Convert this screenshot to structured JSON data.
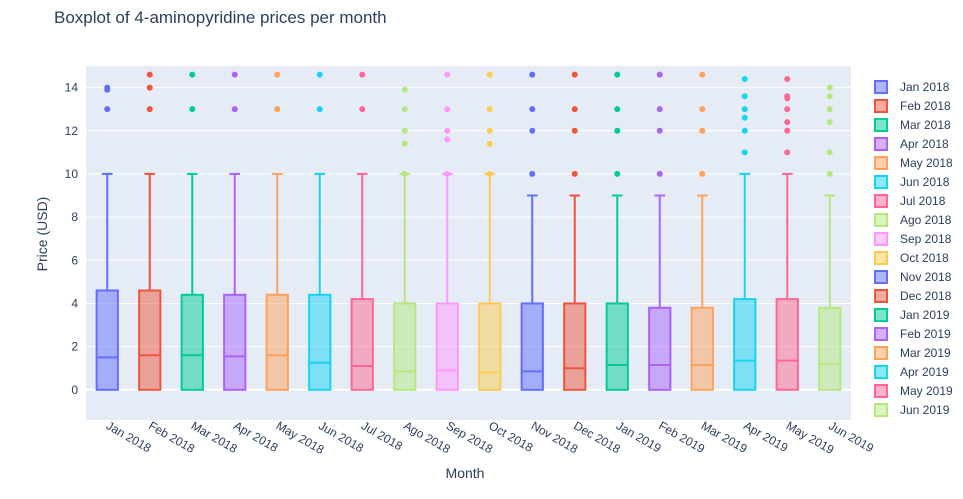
{
  "chart_data": {
    "type": "box",
    "title": "Boxplot of 4-aminopyridine prices per month",
    "xlabel": "Month",
    "ylabel": "Price (USD)",
    "ylim": [
      -1.4,
      15
    ],
    "yticks": [
      0,
      2,
      4,
      6,
      8,
      10,
      12,
      14
    ],
    "grid": true,
    "legend_position": "right",
    "plot_background": "#e5ecf6",
    "series": [
      {
        "name": "Jan 2018",
        "color": "#636efa",
        "q1": 0,
        "median": 1.5,
        "q3": 4.6,
        "lower": 0,
        "upper": 10,
        "outliers": [
          13,
          13.9,
          14
        ]
      },
      {
        "name": "Feb 2018",
        "color": "#ef553b",
        "q1": 0,
        "median": 1.6,
        "q3": 4.6,
        "lower": 0,
        "upper": 10,
        "outliers": [
          13,
          14,
          14.6
        ]
      },
      {
        "name": "Mar 2018",
        "color": "#00cc96",
        "q1": 0,
        "median": 1.6,
        "q3": 4.4,
        "lower": 0,
        "upper": 10,
        "outliers": [
          13,
          14.6
        ]
      },
      {
        "name": "Apr 2018",
        "color": "#ab63fa",
        "q1": 0,
        "median": 1.55,
        "q3": 4.4,
        "lower": 0,
        "upper": 10,
        "outliers": [
          13,
          14.6
        ]
      },
      {
        "name": "May 2018",
        "color": "#ffa15a",
        "q1": 0,
        "median": 1.6,
        "q3": 4.4,
        "lower": 0,
        "upper": 10,
        "outliers": [
          13,
          14.6
        ]
      },
      {
        "name": "Jun 2018",
        "color": "#19d3f3",
        "q1": 0,
        "median": 1.25,
        "q3": 4.4,
        "lower": 0,
        "upper": 10,
        "outliers": [
          13,
          14.6
        ]
      },
      {
        "name": "Jul 2018",
        "color": "#ff6692",
        "q1": 0,
        "median": 1.1,
        "q3": 4.2,
        "lower": 0,
        "upper": 10,
        "outliers": [
          13,
          14.6
        ]
      },
      {
        "name": "Ago 2018",
        "color": "#b6e880",
        "q1": 0,
        "median": 0.85,
        "q3": 4.0,
        "lower": 0,
        "upper": 10,
        "outliers": [
          10,
          11.4,
          12,
          13,
          13.9
        ]
      },
      {
        "name": "Sep 2018",
        "color": "#ff97ff",
        "q1": 0,
        "median": 0.9,
        "q3": 4.0,
        "lower": 0,
        "upper": 10,
        "outliers": [
          10,
          11.6,
          12,
          13,
          14.6
        ]
      },
      {
        "name": "Oct 2018",
        "color": "#fecb52",
        "q1": 0,
        "median": 0.8,
        "q3": 4.0,
        "lower": 0,
        "upper": 10,
        "outliers": [
          10,
          11.4,
          12,
          13,
          14.6
        ]
      },
      {
        "name": "Nov 2018",
        "color": "#636efa",
        "q1": 0,
        "median": 0.85,
        "q3": 4.0,
        "lower": 0,
        "upper": 9,
        "outliers": [
          10,
          12,
          13,
          14.6
        ]
      },
      {
        "name": "Dec 2018",
        "color": "#ef553b",
        "q1": 0,
        "median": 1.0,
        "q3": 4.0,
        "lower": 0,
        "upper": 9,
        "outliers": [
          10,
          12,
          13,
          14.6
        ]
      },
      {
        "name": "Jan 2019",
        "color": "#00cc96",
        "q1": 0,
        "median": 1.15,
        "q3": 4.0,
        "lower": 0,
        "upper": 9,
        "outliers": [
          10,
          12,
          13,
          14.6
        ]
      },
      {
        "name": "Feb 2019",
        "color": "#ab63fa",
        "q1": 0,
        "median": 1.15,
        "q3": 3.8,
        "lower": 0,
        "upper": 9,
        "outliers": [
          10,
          12,
          13,
          14.6
        ]
      },
      {
        "name": "Mar 2019",
        "color": "#ffa15a",
        "q1": 0,
        "median": 1.15,
        "q3": 3.8,
        "lower": 0,
        "upper": 9,
        "outliers": [
          10,
          12,
          13,
          14.6
        ]
      },
      {
        "name": "Apr 2019",
        "color": "#19d3f3",
        "q1": 0,
        "median": 1.35,
        "q3": 4.2,
        "lower": 0,
        "upper": 10,
        "outliers": [
          11,
          12,
          12.6,
          13,
          13.6,
          14.4
        ]
      },
      {
        "name": "May 2019",
        "color": "#ff6692",
        "q1": 0,
        "median": 1.35,
        "q3": 4.2,
        "lower": 0,
        "upper": 10,
        "outliers": [
          11,
          12,
          12.4,
          13,
          13.5,
          13.6,
          14.4
        ]
      },
      {
        "name": "Jun 2019",
        "color": "#b6e880",
        "q1": 0,
        "median": 1.2,
        "q3": 3.8,
        "lower": 0,
        "upper": 9,
        "outliers": [
          10,
          11,
          12.4,
          13,
          13.6,
          14
        ]
      }
    ]
  }
}
